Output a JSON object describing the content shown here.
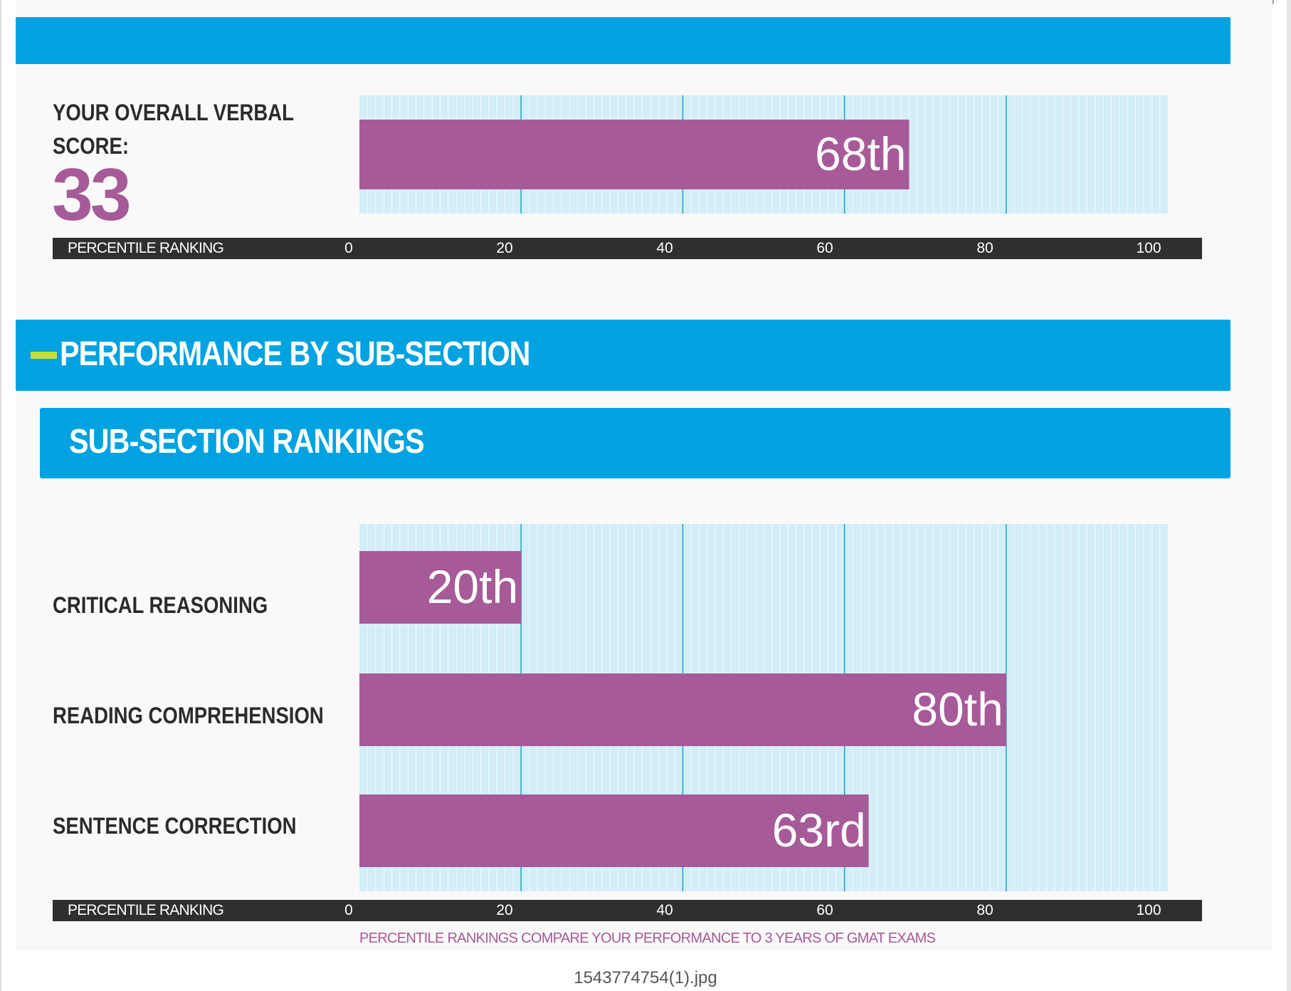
{
  "overall": {
    "label_line1": "YOUR OVERALL VERBAL",
    "label_line2": "SCORE:",
    "score": "33",
    "percentile_label": "68th"
  },
  "section": {
    "performance_title": "PERFORMANCE BY SUB-SECTION",
    "rankings_title": "SUB-SECTION RANKINGS"
  },
  "axis": {
    "title": "PERCENTILE RANKING",
    "ticks": [
      "0",
      "20",
      "40",
      "60",
      "80",
      "100"
    ]
  },
  "footnote": "PERCENTILE RANKINGS COMPARE YOUR PERFORMANCE TO 3 YEARS OF GMAT EXAMS",
  "filename": "1543774754(1).jpg",
  "colors": {
    "accent_blue": "#00a2e0",
    "bar_purple": "#a65a98",
    "plot_background": "#d3eef8",
    "gridline": "#1a9fc9",
    "axis_strip": "#2f2f2f",
    "green_dash": "#c6dc3a"
  },
  "chart_data": [
    {
      "type": "bar",
      "orientation": "horizontal",
      "categories": [
        "YOUR OVERALL VERBAL SCORE:"
      ],
      "values": [
        68
      ],
      "data_labels": [
        "68th"
      ],
      "xlabel": "PERCENTILE RANKING",
      "xlim": [
        0,
        100
      ],
      "xticks": [
        0,
        20,
        40,
        60,
        80,
        100
      ],
      "grid": true
    },
    {
      "type": "bar",
      "orientation": "horizontal",
      "categories": [
        "CRITICAL REASONING",
        "READING COMPREHENSION",
        "SENTENCE CORRECTION"
      ],
      "values": [
        20,
        80,
        63
      ],
      "data_labels": [
        "20th",
        "80th",
        "63rd"
      ],
      "xlabel": "PERCENTILE RANKING",
      "xlim": [
        0,
        100
      ],
      "xticks": [
        0,
        20,
        40,
        60,
        80,
        100
      ],
      "grid": true
    }
  ]
}
